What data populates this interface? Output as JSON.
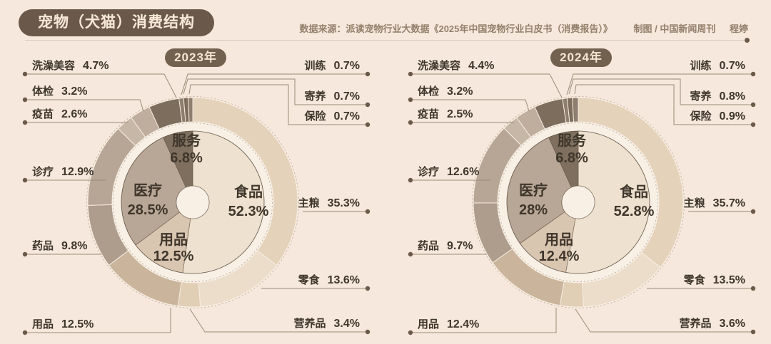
{
  "header": {
    "title": "宠物（犬猫）消费结构",
    "source": "数据来源：派读宠物行业大数据《2025年中国宠物行业白皮书（消费报告）》",
    "credit": "制图 / 中国新闻周刊",
    "author": "程婷"
  },
  "palette": {
    "background": "#f6e8dc",
    "title_pill_bg": "#6a594a",
    "title_text": "#f7e9d8",
    "source_text": "#93806c",
    "divider": "#d9cabb",
    "dot": "#6b5a49",
    "leader_line": "#9b8b79",
    "label_text": "#3f362c",
    "year_badge_bg": "#72614f",
    "year_badge_text": "#f4e6d1",
    "ring_gap": "#f8efe5",
    "dashed_outline": "#8d7b66",
    "inner_colors": {
      "食品": "#eee1cf",
      "用品": "#d9c6b0",
      "医疗": "#b8a796",
      "服务": "#7e6f5e"
    },
    "outer_colors": {
      "主粮": "#e4d2ba",
      "零食": "#ebddc9",
      "营养品": "#e0ceb5",
      "用品": "#cab59c",
      "药品": "#ae9d8c",
      "诊疗": "#b7a695",
      "疫苗": "#c7b7a6",
      "体检": "#bfae9d",
      "洗澡美容": "#7c6d5c",
      "训练": "#8d7e6d",
      "寄养": "#7c6d5c",
      "保险": "#8d7e6d"
    }
  },
  "chart_data": [
    {
      "type": "pie",
      "title": "2023年",
      "unit": "%",
      "inner": [
        {
          "label": "食品",
          "value": 52.3
        },
        {
          "label": "用品",
          "value": 12.5
        },
        {
          "label": "医疗",
          "value": 28.5
        },
        {
          "label": "服务",
          "value": 6.8
        }
      ],
      "outer": [
        {
          "label": "主粮",
          "value": 35.3
        },
        {
          "label": "零食",
          "value": 13.6
        },
        {
          "label": "营养品",
          "value": 3.4
        },
        {
          "label": "用品",
          "value": 12.5
        },
        {
          "label": "药品",
          "value": 9.8
        },
        {
          "label": "诊疗",
          "value": 12.9
        },
        {
          "label": "疫苗",
          "value": 2.6
        },
        {
          "label": "体检",
          "value": 3.2
        },
        {
          "label": "洗澡美容",
          "value": 4.7
        },
        {
          "label": "训练",
          "value": 0.7
        },
        {
          "label": "寄养",
          "value": 0.7
        },
        {
          "label": "保险",
          "value": 0.7
        }
      ]
    },
    {
      "type": "pie",
      "title": "2024年",
      "unit": "%",
      "inner": [
        {
          "label": "食品",
          "value": 52.8
        },
        {
          "label": "用品",
          "value": 12.4
        },
        {
          "label": "医疗",
          "value": 28.0
        },
        {
          "label": "服务",
          "value": 6.8
        }
      ],
      "outer": [
        {
          "label": "主粮",
          "value": 35.7
        },
        {
          "label": "零食",
          "value": 13.5
        },
        {
          "label": "营养品",
          "value": 3.6
        },
        {
          "label": "用品",
          "value": 12.4
        },
        {
          "label": "药品",
          "value": 9.7
        },
        {
          "label": "诊疗",
          "value": 12.6
        },
        {
          "label": "疫苗",
          "value": 2.5
        },
        {
          "label": "体检",
          "value": 3.2
        },
        {
          "label": "洗澡美容",
          "value": 4.4
        },
        {
          "label": "训练",
          "value": 0.7
        },
        {
          "label": "寄养",
          "value": 0.8
        },
        {
          "label": "保险",
          "value": 0.9
        }
      ]
    }
  ]
}
